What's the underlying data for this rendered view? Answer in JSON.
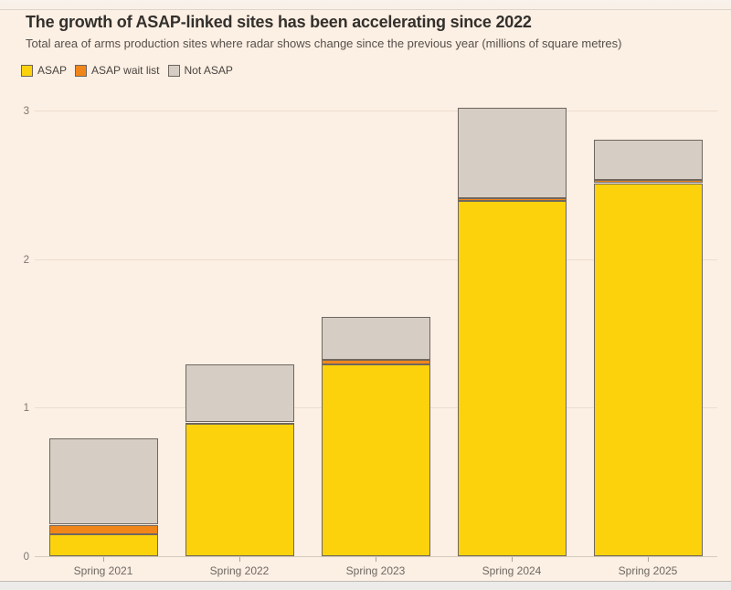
{
  "chart_data": {
    "type": "bar",
    "stacked": true,
    "title": "The growth of ASAP-linked sites has been accelerating since 2022",
    "subtitle": "Total area of arms production sites where radar shows change since the previous year (millions of square metres)",
    "categories": [
      "Spring 2021",
      "Spring 2022",
      "Spring 2023",
      "Spring 2024",
      "Spring 2025"
    ],
    "series": [
      {
        "name": "ASAP",
        "color": "#fcd20d",
        "values": [
          0.15,
          0.89,
          1.29,
          2.39,
          2.51
        ]
      },
      {
        "name": "ASAP wait list",
        "color": "#f0861a",
        "values": [
          0.06,
          0.01,
          0.03,
          0.02,
          0.02
        ]
      },
      {
        "name": "Not ASAP",
        "color": "#d6cec4",
        "values": [
          0.58,
          0.39,
          0.29,
          0.61,
          0.27
        ]
      }
    ],
    "totals": [
      0.79,
      1.29,
      1.61,
      3.02,
      2.8
    ],
    "xlabel": "",
    "ylabel": "",
    "yticks": [
      0,
      1,
      2,
      3
    ],
    "ylim": [
      0,
      3.1
    ],
    "grid": "horizontal",
    "legend_position": "top-left"
  },
  "colors": {
    "background": "#fcefe3",
    "segment_border": "#6f675f",
    "gridline": "#ecdfd1",
    "baseline": "#d5c9bc",
    "title_text": "#33302c",
    "subtitle_text": "#56504b",
    "axis_text": "#7e766e"
  }
}
